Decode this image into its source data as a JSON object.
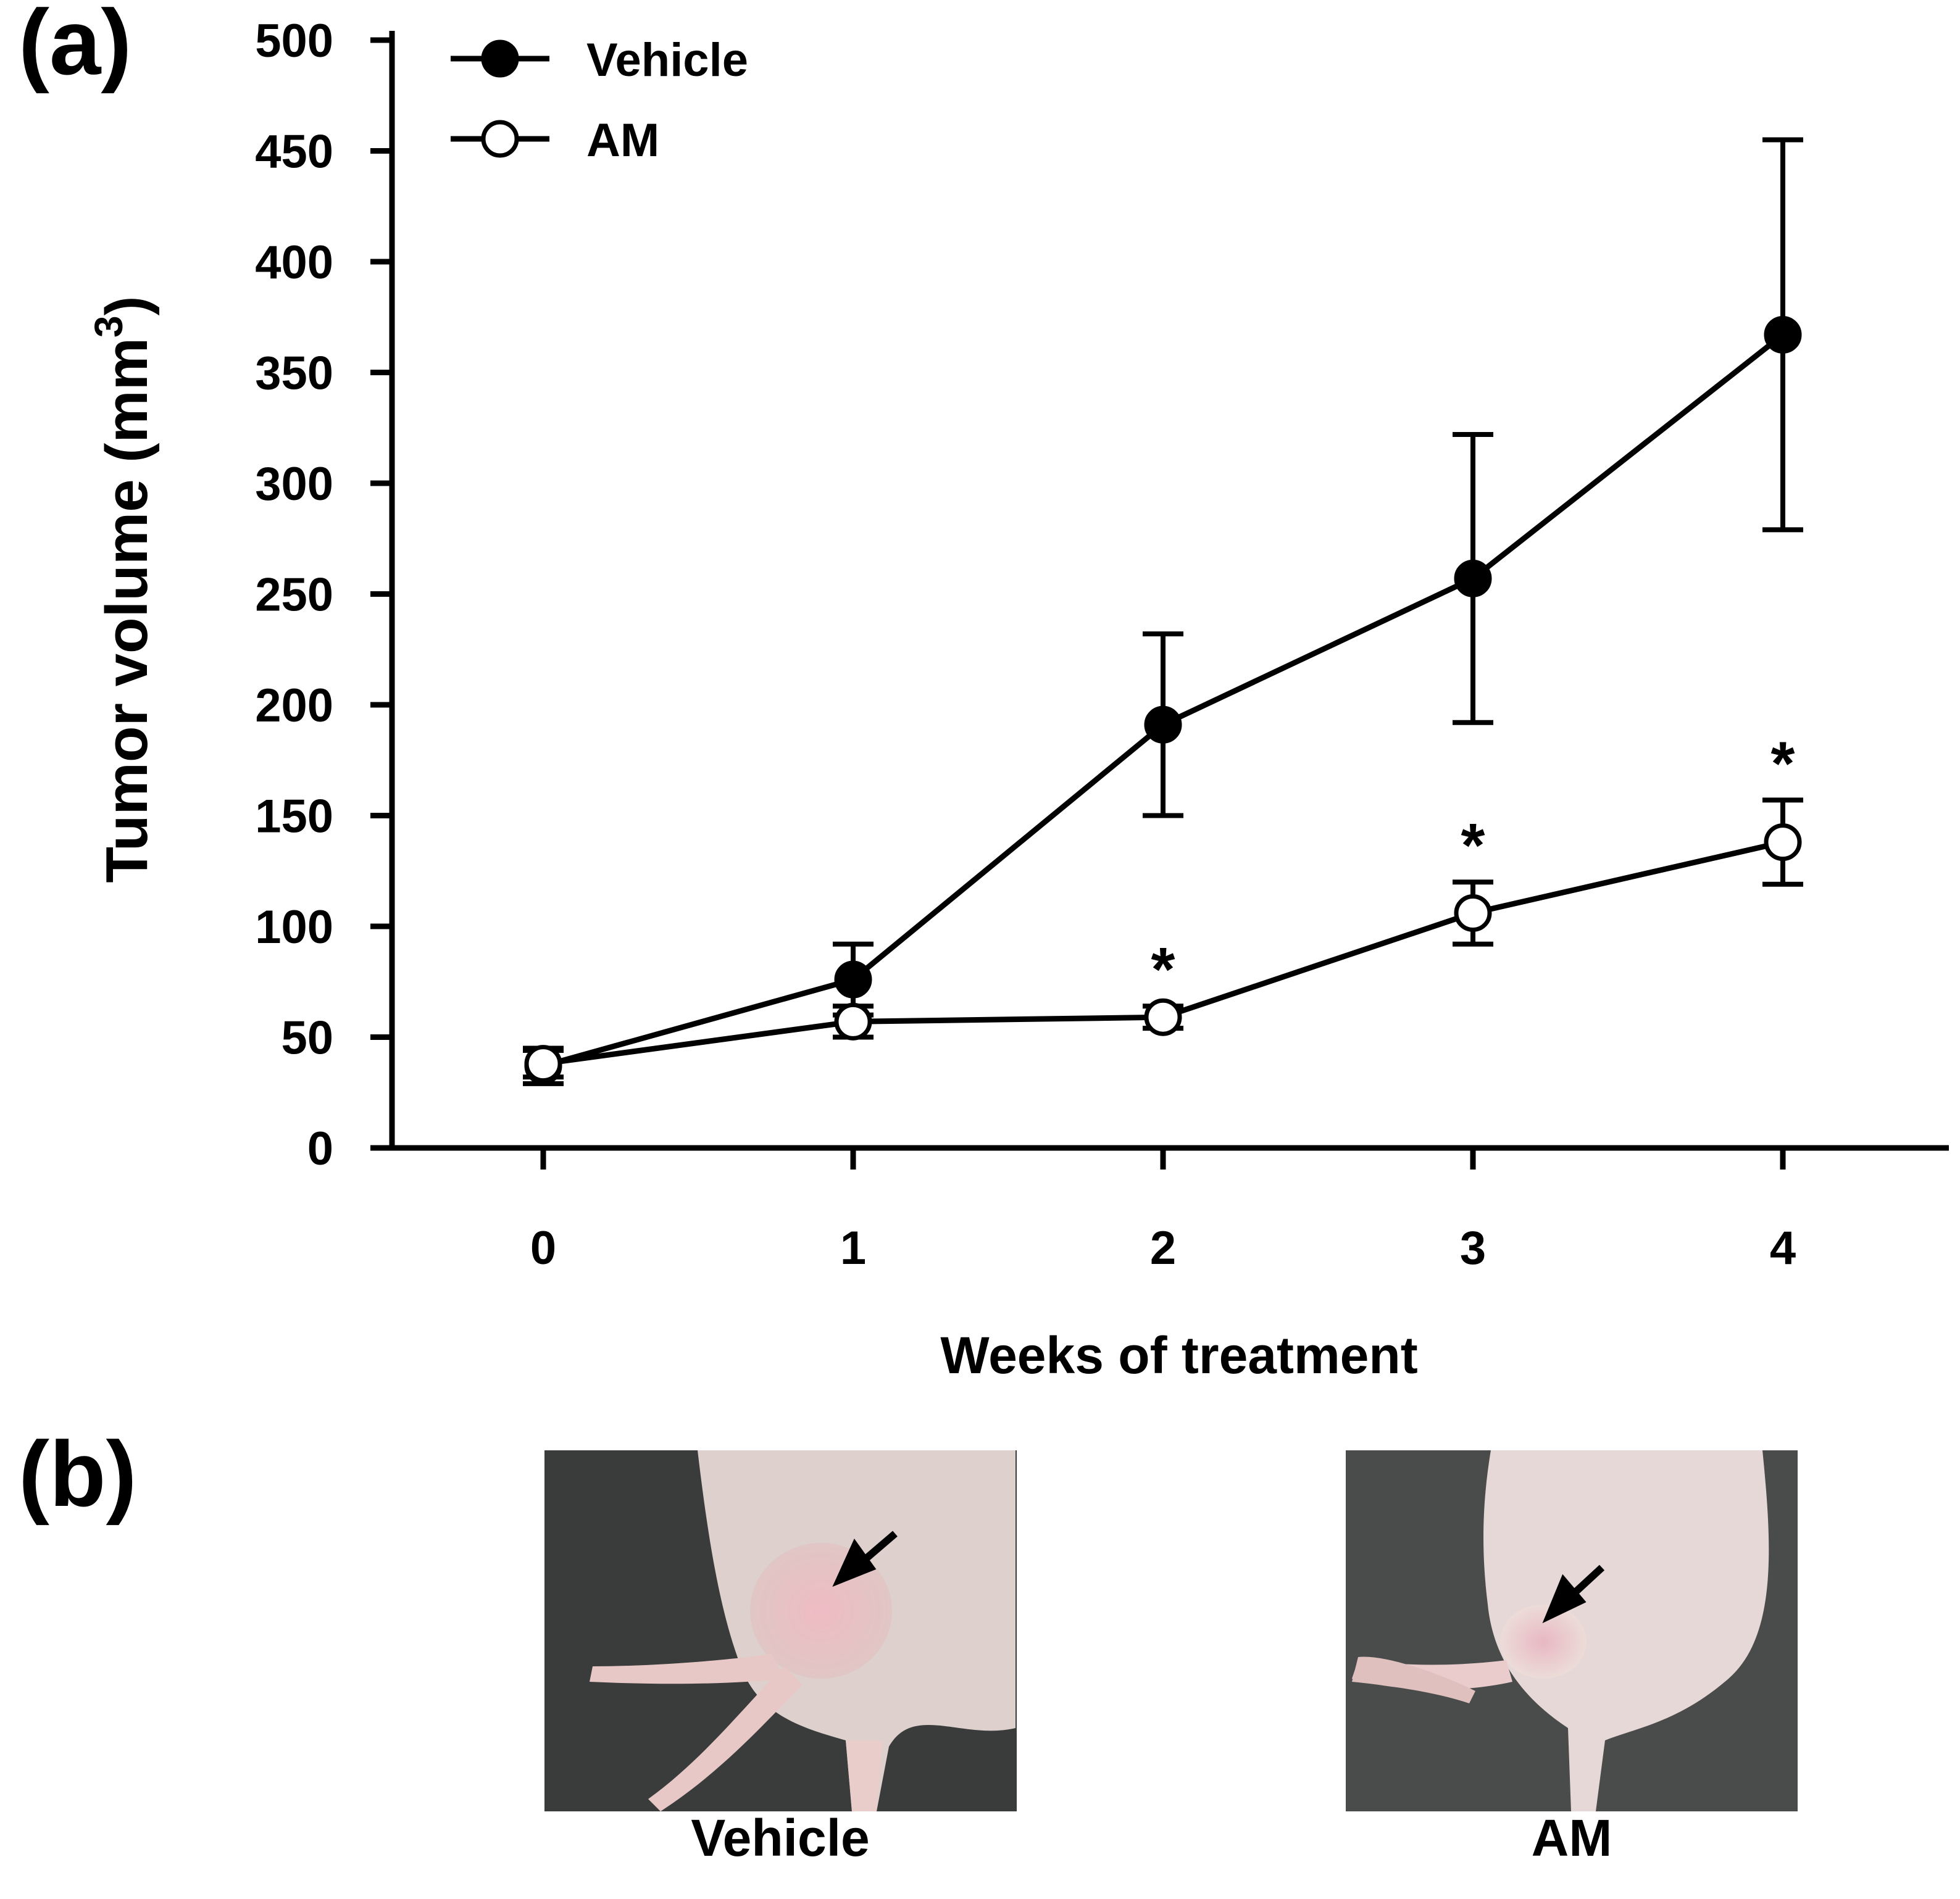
{
  "panels": {
    "a": "(a)",
    "b": "(b)"
  },
  "chart_data": {
    "type": "line",
    "title": "",
    "xlabel": "Weeks of treatment",
    "ylabel": "Tumor volume  (mm",
    "ylabel_superscript": "3",
    "ylabel_close": ")",
    "x": [
      0,
      1,
      2,
      3,
      4
    ],
    "xlim": [
      -0.5,
      4.5
    ],
    "ylim": [
      0,
      500
    ],
    "yticks": [
      0,
      50,
      100,
      150,
      200,
      250,
      300,
      350,
      400,
      450,
      500
    ],
    "legend_position": "top-left",
    "grid": false,
    "series": [
      {
        "name": "Vehicle",
        "marker": "filled-circle",
        "values": [
          37,
          76,
          191,
          257,
          367
        ],
        "error": [
          8,
          16,
          41,
          65,
          88
        ]
      },
      {
        "name": "AM",
        "marker": "open-circle",
        "values": [
          38,
          57,
          59,
          106,
          138
        ],
        "error": [
          6,
          7,
          5,
          14,
          19
        ]
      }
    ],
    "annotations": [
      {
        "x": 2,
        "text": "*"
      },
      {
        "x": 3,
        "text": "*"
      },
      {
        "x": 4,
        "text": "*"
      }
    ]
  },
  "photos": {
    "vehicle_label": "Vehicle",
    "am_label": "AM"
  },
  "colors": {
    "line": "#000000",
    "photo_bg": "#3a3c3b",
    "skin": "#e8d6d2",
    "tumor": "#e6b4bc"
  }
}
